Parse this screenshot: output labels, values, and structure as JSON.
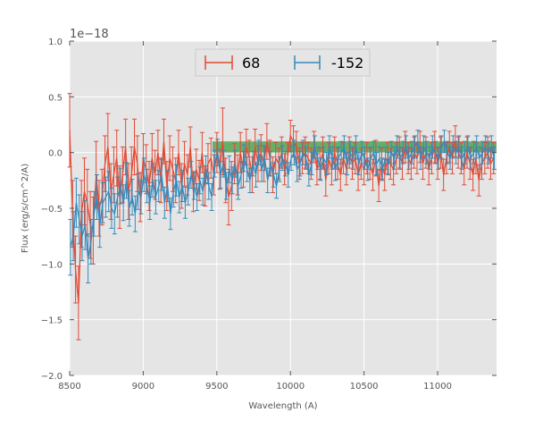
{
  "chart_data": {
    "type": "line",
    "title": "",
    "xlabel": "Wavelength (A)",
    "ylabel": "Flux (erg/s/cm^2/A)",
    "offset_text": "1e−18",
    "x_ticks": [
      8500,
      9000,
      9500,
      10000,
      10500,
      11000
    ],
    "y_ticks": [
      "1.0",
      "0.5",
      "0.0",
      "−0.5",
      "−1.0",
      "−1.5",
      "−2.0"
    ],
    "y_tick_values": [
      1.0,
      0.5,
      0.0,
      -0.5,
      -1.0,
      -1.5,
      -2.0
    ],
    "xlim": [
      8500,
      11400
    ],
    "ylim": [
      -2.0,
      1.0
    ],
    "y_scale_exponent": -18,
    "grid": true,
    "legend_position": "top-center",
    "colors": {
      "background": "#e5e5e5",
      "grid": "#ffffff",
      "series_68": "#e24a33",
      "series_neg152": "#348abd",
      "band": "#3c9b3c"
    },
    "band": {
      "x": [
        9470,
        11400
      ],
      "y": [
        0.0,
        0.1
      ]
    },
    "series": [
      {
        "name": "68",
        "x": [
          8500,
          8520,
          8540,
          8560,
          8580,
          8600,
          8620,
          8640,
          8660,
          8680,
          8700,
          8720,
          8740,
          8760,
          8780,
          8800,
          8820,
          8840,
          8860,
          8880,
          8900,
          8920,
          8940,
          8960,
          8980,
          9000,
          9020,
          9040,
          9060,
          9080,
          9100,
          9120,
          9140,
          9160,
          9180,
          9200,
          9220,
          9240,
          9260,
          9280,
          9300,
          9320,
          9340,
          9360,
          9380,
          9400,
          9420,
          9440,
          9460,
          9480,
          9500,
          9520,
          9540,
          9560,
          9580,
          9600,
          9620,
          9640,
          9660,
          9680,
          9700,
          9720,
          9740,
          9760,
          9780,
          9800,
          9820,
          9840,
          9860,
          9880,
          9900,
          9920,
          9940,
          9960,
          9980,
          10000,
          10020,
          10040,
          10060,
          10080,
          10100,
          10120,
          10140,
          10160,
          10180,
          10200,
          10220,
          10240,
          10260,
          10280,
          10300,
          10320,
          10340,
          10360,
          10380,
          10400,
          10420,
          10440,
          10460,
          10480,
          10500,
          10520,
          10540,
          10560,
          10580,
          10600,
          10620,
          10640,
          10660,
          10680,
          10700,
          10720,
          10740,
          10760,
          10780,
          10800,
          10820,
          10840,
          10860,
          10880,
          10900,
          10920,
          10940,
          10960,
          10980,
          11000,
          11020,
          11040,
          11060,
          11080,
          11100,
          11120,
          11140,
          11160,
          11180,
          11200,
          11220,
          11240,
          11260,
          11280,
          11300,
          11320,
          11340,
          11360,
          11380
        ],
        "y": [
          0.2,
          -0.55,
          -1.05,
          -1.35,
          -0.55,
          -0.35,
          -0.45,
          -0.65,
          -0.7,
          -0.2,
          -0.5,
          -0.4,
          -0.1,
          0.05,
          -0.35,
          -0.2,
          -0.05,
          -0.4,
          -0.2,
          0.05,
          -0.35,
          -0.2,
          0.05,
          -0.1,
          -0.4,
          -0.05,
          -0.15,
          -0.3,
          -0.05,
          -0.2,
          0.0,
          -0.25,
          0.1,
          -0.3,
          -0.05,
          -0.15,
          -0.25,
          0.0,
          -0.3,
          -0.1,
          -0.2,
          0.05,
          -0.35,
          -0.15,
          -0.25,
          0.0,
          -0.3,
          -0.1,
          -0.05,
          -0.2,
          0.0,
          -0.15,
          0.1,
          -0.25,
          -0.4,
          -0.3,
          -0.1,
          -0.2,
          0.0,
          -0.15,
          0.05,
          -0.05,
          -0.2,
          0.05,
          -0.1,
          0.0,
          -0.1,
          0.1,
          -0.05,
          -0.2,
          -0.05,
          -0.1,
          0.0,
          -0.15,
          -0.05,
          0.15,
          0.1,
          0.05,
          -0.1,
          -0.05,
          0.0,
          -0.05,
          -0.1,
          0.05,
          -0.15,
          -0.1,
          0.0,
          -0.25,
          -0.05,
          -0.15,
          0.0,
          -0.1,
          -0.2,
          -0.05,
          -0.15,
          0.0,
          -0.1,
          -0.05,
          -0.2,
          -0.1,
          -0.15,
          -0.05,
          -0.1,
          -0.2,
          -0.05,
          -0.3,
          -0.1,
          -0.2,
          -0.05,
          -0.1,
          -0.15,
          -0.05,
          0.0,
          -0.1,
          0.05,
          -0.05,
          -0.1,
          0.0,
          -0.05,
          0.05,
          -0.1,
          0.0,
          -0.15,
          -0.05,
          0.05,
          -0.1,
          0.0,
          -0.2,
          -0.05,
          0.05,
          -0.05,
          0.1,
          0.0,
          -0.05,
          -0.15,
          0.0,
          -0.1,
          -0.2,
          -0.05,
          -0.25,
          -0.1,
          -0.05,
          0.0,
          -0.1,
          -0.05
        ],
        "err": [
          0.33,
          0.3,
          0.3,
          0.33,
          0.3,
          0.3,
          0.3,
          0.3,
          0.3,
          0.3,
          0.25,
          0.25,
          0.25,
          0.3,
          0.25,
          0.25,
          0.25,
          0.28,
          0.25,
          0.25,
          0.25,
          0.25,
          0.25,
          0.25,
          0.22,
          0.22,
          0.22,
          0.22,
          0.22,
          0.22,
          0.2,
          0.2,
          0.2,
          0.22,
          0.2,
          0.2,
          0.2,
          0.2,
          0.2,
          0.2,
          0.18,
          0.18,
          0.18,
          0.18,
          0.18,
          0.18,
          0.18,
          0.18,
          0.18,
          0.18,
          0.18,
          0.18,
          0.3,
          0.2,
          0.25,
          0.22,
          0.18,
          0.18,
          0.18,
          0.16,
          0.16,
          0.16,
          0.16,
          0.16,
          0.16,
          0.16,
          0.16,
          0.16,
          0.16,
          0.16,
          0.14,
          0.14,
          0.14,
          0.14,
          0.14,
          0.14,
          0.14,
          0.14,
          0.14,
          0.14,
          0.14,
          0.14,
          0.14,
          0.14,
          0.14,
          0.14,
          0.14,
          0.14,
          0.14,
          0.14,
          0.14,
          0.14,
          0.14,
          0.14,
          0.14,
          0.14,
          0.14,
          0.14,
          0.14,
          0.14,
          0.14,
          0.14,
          0.14,
          0.14,
          0.16,
          0.14,
          0.14,
          0.14,
          0.14,
          0.14,
          0.14,
          0.14,
          0.14,
          0.14,
          0.14,
          0.14,
          0.14,
          0.14,
          0.14,
          0.14,
          0.14,
          0.14,
          0.14,
          0.14,
          0.14,
          0.14,
          0.14,
          0.14,
          0.14,
          0.14,
          0.14,
          0.14,
          0.14,
          0.14,
          0.14,
          0.14,
          0.14,
          0.14,
          0.14,
          0.14,
          0.14,
          0.14,
          0.14,
          0.14,
          0.14
        ]
      },
      {
        "name": "-152",
        "x": [
          8505,
          8525,
          8545,
          8565,
          8585,
          8605,
          8625,
          8645,
          8665,
          8685,
          8705,
          8725,
          8745,
          8765,
          8785,
          8805,
          8825,
          8845,
          8865,
          8885,
          8905,
          8925,
          8945,
          8965,
          8985,
          9005,
          9025,
          9045,
          9065,
          9085,
          9105,
          9125,
          9145,
          9165,
          9185,
          9205,
          9225,
          9245,
          9265,
          9285,
          9305,
          9325,
          9345,
          9365,
          9385,
          9405,
          9425,
          9445,
          9465,
          9485,
          9505,
          9525,
          9545,
          9565,
          9585,
          9605,
          9625,
          9645,
          9665,
          9685,
          9705,
          9725,
          9745,
          9765,
          9785,
          9805,
          9825,
          9845,
          9865,
          9885,
          9905,
          9925,
          9945,
          9965,
          9985,
          10005,
          10025,
          10045,
          10065,
          10085,
          10105,
          10125,
          10145,
          10165,
          10185,
          10205,
          10225,
          10245,
          10265,
          10285,
          10305,
          10325,
          10345,
          10365,
          10385,
          10405,
          10425,
          10445,
          10465,
          10485,
          10505,
          10525,
          10545,
          10565,
          10585,
          10605,
          10625,
          10645,
          10665,
          10685,
          10705,
          10725,
          10745,
          10765,
          10785,
          10805,
          10825,
          10845,
          10865,
          10885,
          10905,
          10925,
          10945,
          10965,
          10985,
          11005,
          11025,
          11045,
          11065,
          11085,
          11105,
          11125,
          11145,
          11165,
          11185,
          11205,
          11225,
          11245,
          11265,
          11285,
          11305,
          11325,
          11345,
          11365,
          11385
        ],
        "y": [
          -0.85,
          -0.75,
          -0.45,
          -0.6,
          -0.75,
          -0.65,
          -0.95,
          -0.8,
          -0.55,
          -0.4,
          -0.65,
          -0.45,
          -0.4,
          -0.35,
          -0.5,
          -0.55,
          -0.4,
          -0.3,
          -0.45,
          -0.25,
          -0.5,
          -0.4,
          -0.55,
          -0.35,
          -0.4,
          -0.2,
          -0.3,
          -0.45,
          -0.25,
          -0.4,
          -0.3,
          -0.2,
          -0.45,
          -0.3,
          -0.55,
          -0.35,
          -0.25,
          -0.4,
          -0.3,
          -0.45,
          -0.35,
          -0.2,
          -0.3,
          -0.4,
          -0.25,
          -0.35,
          -0.15,
          -0.3,
          -0.4,
          -0.1,
          0.0,
          -0.2,
          -0.1,
          -0.3,
          -0.15,
          -0.25,
          -0.1,
          -0.3,
          -0.2,
          -0.05,
          -0.15,
          -0.25,
          -0.1,
          -0.2,
          0.0,
          -0.15,
          -0.05,
          -0.25,
          -0.1,
          -0.2,
          -0.3,
          -0.15,
          -0.05,
          -0.1,
          -0.2,
          -0.05,
          0.0,
          -0.15,
          -0.1,
          0.0,
          -0.05,
          -0.2,
          -0.1,
          0.05,
          -0.05,
          -0.15,
          -0.05,
          -0.1,
          0.05,
          -0.05,
          -0.15,
          -0.05,
          0.0,
          0.05,
          -0.1,
          0.0,
          -0.05,
          0.05,
          -0.1,
          0.0,
          -0.05,
          -0.15,
          -0.05,
          0.0,
          -0.1,
          -0.05,
          -0.15,
          -0.05,
          -0.1,
          0.0,
          -0.05,
          0.05,
          -0.05,
          0.0,
          0.05,
          -0.05,
          0.0,
          0.05,
          0.1,
          -0.05,
          0.05,
          0.0,
          -0.05,
          0.05,
          0.0,
          -0.05,
          0.05,
          0.1,
          0.0,
          -0.05,
          0.05,
          0.0,
          0.05,
          -0.05,
          0.0,
          0.05,
          -0.05,
          0.0,
          0.05,
          -0.05,
          0.0,
          0.05,
          0.0,
          0.05,
          -0.05
        ],
        "err": [
          0.25,
          0.22,
          0.22,
          0.22,
          0.22,
          0.22,
          0.22,
          0.2,
          0.2,
          0.2,
          0.2,
          0.18,
          0.18,
          0.18,
          0.18,
          0.18,
          0.18,
          0.16,
          0.16,
          0.16,
          0.16,
          0.16,
          0.16,
          0.16,
          0.15,
          0.15,
          0.15,
          0.15,
          0.15,
          0.15,
          0.14,
          0.14,
          0.14,
          0.14,
          0.14,
          0.14,
          0.14,
          0.14,
          0.14,
          0.14,
          0.12,
          0.12,
          0.12,
          0.12,
          0.12,
          0.12,
          0.12,
          0.12,
          0.12,
          0.12,
          0.12,
          0.12,
          0.12,
          0.12,
          0.12,
          0.12,
          0.12,
          0.12,
          0.12,
          0.12,
          0.11,
          0.11,
          0.11,
          0.11,
          0.11,
          0.11,
          0.11,
          0.11,
          0.11,
          0.11,
          0.11,
          0.11,
          0.11,
          0.11,
          0.11,
          0.11,
          0.11,
          0.11,
          0.11,
          0.11,
          0.1,
          0.1,
          0.1,
          0.1,
          0.1,
          0.1,
          0.1,
          0.1,
          0.1,
          0.1,
          0.1,
          0.1,
          0.1,
          0.1,
          0.1,
          0.1,
          0.1,
          0.1,
          0.1,
          0.1,
          0.1,
          0.1,
          0.1,
          0.1,
          0.1,
          0.1,
          0.1,
          0.1,
          0.1,
          0.1,
          0.1,
          0.1,
          0.1,
          0.1,
          0.1,
          0.1,
          0.1,
          0.1,
          0.1,
          0.1,
          0.1,
          0.1,
          0.1,
          0.1,
          0.1,
          0.1,
          0.1,
          0.1,
          0.1,
          0.1,
          0.1,
          0.1,
          0.1,
          0.1,
          0.1,
          0.1,
          0.1,
          0.1,
          0.1,
          0.1,
          0.1,
          0.1,
          0.1,
          0.1,
          0.1
        ]
      }
    ]
  }
}
